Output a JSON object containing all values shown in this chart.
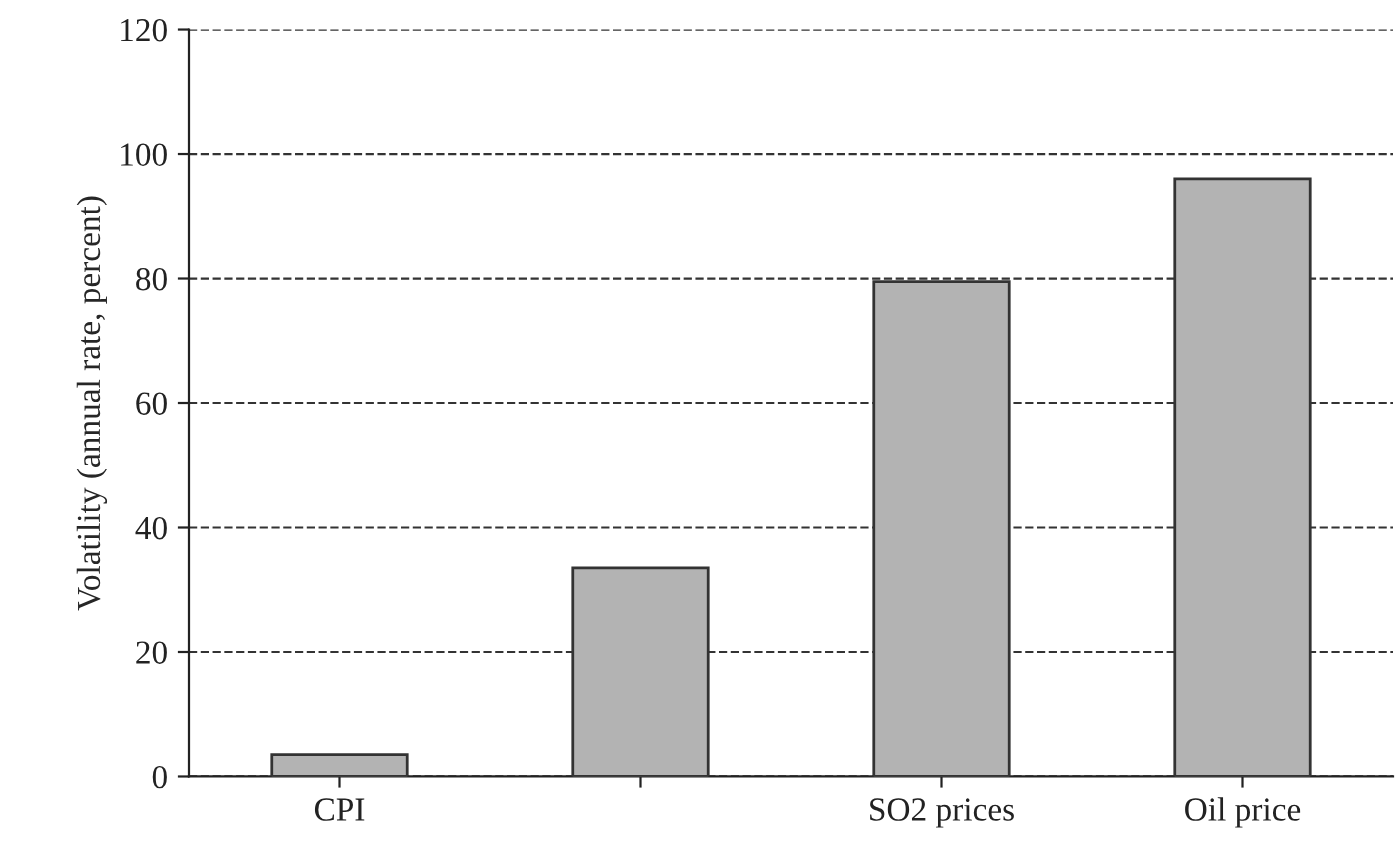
{
  "chart_data": {
    "type": "bar",
    "ylabel": "Volatility (annual rate, percent)",
    "categories": [
      "CPI",
      null,
      "SO2 prices",
      "Oil price"
    ],
    "values": [
      3.5,
      33.5,
      79.5,
      96
    ],
    "color": "#b3b3b3",
    "ylim": [
      0,
      120
    ],
    "yticks": [
      0,
      20,
      40,
      60,
      80,
      100,
      120
    ],
    "grid": "y"
  }
}
